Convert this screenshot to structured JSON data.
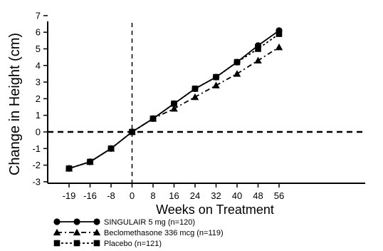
{
  "chart_data": {
    "type": "line",
    "title": "",
    "xlabel": "Weeks on Treatment",
    "ylabel": "Change in Height (cm)",
    "xticks": [
      -19,
      -16,
      -8,
      0,
      8,
      16,
      24,
      32,
      40,
      48,
      56
    ],
    "xtick_labels": [
      "-19",
      "-16",
      "-8",
      "0",
      "8",
      "16",
      "24",
      "32",
      "40",
      "48",
      "56"
    ],
    "yticks": [
      -3,
      -2,
      -1,
      0,
      1,
      2,
      3,
      4,
      5,
      6,
      7
    ],
    "ytick_labels": [
      "-3",
      "-2",
      "-1",
      "0",
      "1",
      "2",
      "3",
      "4",
      "5",
      "6",
      "7"
    ],
    "ylim": [
      -3,
      7
    ],
    "x_axis_scale": "categorical-evenly-spaced",
    "reference_lines": {
      "horizontal_at_y": 0,
      "vertical_at_x": 0,
      "style": "dashed"
    },
    "grid": false,
    "legend_position": "bottom-left",
    "series": [
      {
        "name": "SINGULAIR 5 mg (n=120)",
        "marker": "circle",
        "line_style": "solid",
        "x": [
          -19,
          -16,
          -8,
          0,
          8,
          16,
          24,
          32,
          40,
          48,
          56
        ],
        "y": [
          -2.2,
          -1.8,
          -1.0,
          0.0,
          0.8,
          1.7,
          2.6,
          3.3,
          4.2,
          5.2,
          6.1
        ]
      },
      {
        "name": "Beclomethasone 336 mcg (n=119)",
        "marker": "triangle",
        "line_style": "dash-dot",
        "x": [
          -19,
          -16,
          -8,
          0,
          8,
          16,
          24,
          32,
          40,
          48,
          56
        ],
        "y": [
          -2.2,
          -1.8,
          -1.0,
          0.0,
          0.8,
          1.4,
          2.1,
          2.8,
          3.5,
          4.3,
          5.1
        ]
      },
      {
        "name": "Placebo (n=121)",
        "marker": "square",
        "line_style": "dotted",
        "x": [
          -19,
          -16,
          -8,
          0,
          8,
          16,
          24,
          32,
          40,
          48,
          56
        ],
        "y": [
          -2.2,
          -1.8,
          -1.0,
          0.0,
          0.8,
          1.7,
          2.6,
          3.3,
          4.2,
          5.0,
          5.9
        ]
      }
    ]
  }
}
